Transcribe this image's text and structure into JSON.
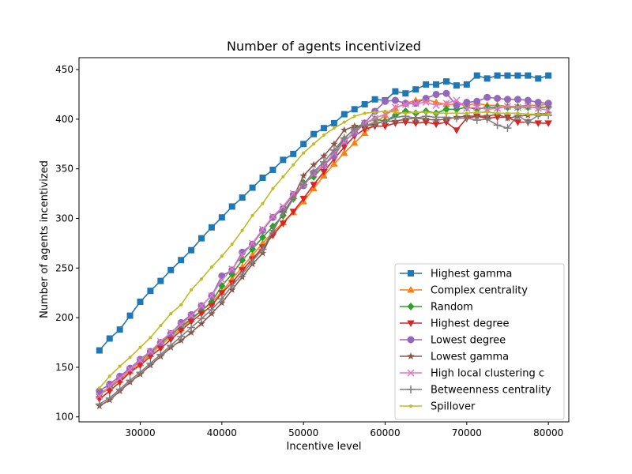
{
  "chart_data": {
    "type": "line",
    "title": "Number of agents incentivized",
    "xlabel": "Incentive level",
    "ylabel": "Number of agents incentivized",
    "xlim": [
      22500,
      82500
    ],
    "ylim": [
      95,
      462
    ],
    "xticks": [
      30000,
      40000,
      50000,
      60000,
      70000,
      80000
    ],
    "xtick_labels": [
      "30000",
      "40000",
      "50000",
      "60000",
      "70000",
      "80000"
    ],
    "yticks": [
      100,
      150,
      200,
      250,
      300,
      350,
      400,
      450
    ],
    "ytick_labels": [
      "100",
      "150",
      "200",
      "250",
      "300",
      "350",
      "400",
      "450"
    ],
    "grid": false,
    "legend_position": "lower-right",
    "x": [
      25000,
      26250,
      27500,
      28750,
      30000,
      31250,
      32500,
      33750,
      35000,
      36250,
      37500,
      38750,
      40000,
      41250,
      42500,
      43750,
      45000,
      46250,
      47500,
      48750,
      50000,
      51250,
      52500,
      53750,
      55000,
      56250,
      57500,
      58750,
      60000,
      61250,
      62500,
      63750,
      65000,
      66250,
      67500,
      68750,
      70000,
      71250,
      72500,
      73750,
      75000,
      76250,
      77500,
      78750,
      80000
    ],
    "series": [
      {
        "name": "Highest gamma",
        "color": "#1f77b4",
        "marker": "square",
        "values": [
          167,
          179,
          188,
          202,
          216,
          227,
          237,
          248,
          258,
          268,
          280,
          291,
          301,
          312,
          321,
          331,
          341,
          349,
          359,
          365,
          375,
          385,
          391,
          396,
          405,
          410,
          415,
          420,
          419,
          428,
          426,
          430,
          435,
          435,
          438,
          434,
          435,
          444,
          441,
          444,
          444,
          444,
          444,
          441,
          444
        ]
      },
      {
        "name": "Complex centrality",
        "color": "#ff7f0e",
        "marker": "triangle-up",
        "values": [
          122,
          129,
          137,
          146,
          154,
          163,
          172,
          181,
          189,
          198,
          207,
          215,
          226,
          239,
          251,
          263,
          275,
          286,
          296,
          306,
          317,
          330,
          343,
          355,
          366,
          376,
          386,
          396,
          404,
          411,
          416,
          419,
          420,
          417,
          415,
          415,
          414,
          416,
          414,
          414,
          413,
          413,
          414,
          414,
          415
        ]
      },
      {
        "name": "Random",
        "color": "#2ca02c",
        "marker": "diamond",
        "values": [
          123,
          130,
          139,
          148,
          156,
          165,
          174,
          183,
          191,
          199,
          207,
          216,
          232,
          244,
          258,
          269,
          281,
          292,
          303,
          320,
          336,
          342,
          353,
          366,
          380,
          391,
          396,
          400,
          398,
          404,
          408,
          406,
          408,
          406,
          410,
          410,
          412,
          410,
          412,
          412,
          412,
          412,
          412,
          412,
          412
        ]
      },
      {
        "name": "Highest degree",
        "color": "#d62728",
        "marker": "triangle-down",
        "values": [
          118,
          126,
          135,
          145,
          152,
          161,
          169,
          178,
          187,
          196,
          204,
          212,
          225,
          235,
          248,
          259,
          271,
          283,
          295,
          307,
          320,
          334,
          347,
          360,
          372,
          383,
          390,
          393,
          393,
          396,
          397,
          396,
          397,
          395,
          397,
          389,
          401,
          403,
          401,
          402,
          402,
          397,
          397,
          396,
          396
        ]
      },
      {
        "name": "Lowest degree",
        "color": "#9467bd",
        "marker": "circle",
        "values": [
          126,
          133,
          141,
          149,
          158,
          166,
          175,
          184,
          195,
          203,
          212,
          222,
          242,
          248,
          266,
          274,
          288,
          301,
          310,
          324,
          333,
          346,
          354,
          363,
          378,
          386,
          396,
          408,
          418,
          419,
          416,
          416,
          421,
          425,
          426,
          414,
          417,
          418,
          422,
          421,
          420,
          420,
          419,
          417,
          416
        ]
      },
      {
        "name": "Lowest gamma",
        "color": "#8c564b",
        "marker": "star",
        "values": [
          111,
          117,
          126,
          135,
          143,
          152,
          161,
          170,
          177,
          185,
          194,
          204,
          215,
          228,
          241,
          254,
          265,
          287,
          306,
          321,
          343,
          354,
          363,
          375,
          389,
          393,
          393,
          395,
          398,
          398,
          400,
          401,
          400,
          399,
          400,
          402,
          403,
          403,
          403,
          405,
          401,
          403,
          404,
          405,
          406
        ]
      },
      {
        "name": "High local clustering c",
        "color": "#e377c2",
        "marker": "x",
        "values": [
          121,
          131,
          139,
          148,
          157,
          166,
          176,
          185,
          193,
          202,
          212,
          222,
          238,
          249,
          263,
          275,
          289,
          302,
          312,
          325,
          334,
          345,
          354,
          366,
          377,
          388,
          396,
          401,
          405,
          412,
          415,
          416,
          417,
          414,
          416,
          419,
          411,
          412,
          410,
          411,
          413,
          412,
          413,
          411,
          409
        ]
      },
      {
        "name": "Betweenness centrality",
        "color": "#7f7f7f",
        "marker": "plus",
        "values": [
          113,
          119,
          128,
          137,
          145,
          154,
          163,
          172,
          181,
          190,
          199,
          208,
          219,
          232,
          244,
          257,
          269,
          288,
          306,
          320,
          334,
          347,
          357,
          369,
          381,
          390,
          394,
          396,
          398,
          402,
          403,
          401,
          403,
          402,
          402,
          401,
          401,
          399,
          400,
          394,
          391,
          404,
          397,
          404,
          404
        ]
      },
      {
        "name": "Spillover",
        "color": "#bcbd22",
        "marker": "point",
        "values": [
          129,
          141,
          151,
          160,
          170,
          180,
          192,
          204,
          213,
          228,
          239,
          251,
          262,
          274,
          288,
          303,
          315,
          330,
          342,
          354,
          366,
          375,
          384,
          391,
          397,
          403,
          406,
          407,
          408,
          407,
          406,
          407,
          407,
          406,
          406,
          406,
          406,
          407,
          407,
          406,
          406,
          406,
          405,
          405,
          405
        ]
      }
    ]
  }
}
